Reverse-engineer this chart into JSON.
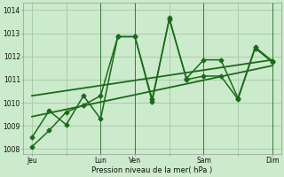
{
  "bg_color": "#cceacc",
  "grid_color": "#aaccaa",
  "line_color": "#1a6b1a",
  "ylabel": "Pression niveau de la mer( hPa )",
  "ylim": [
    1007.8,
    1014.3
  ],
  "yticks": [
    1008,
    1009,
    1010,
    1011,
    1012,
    1013,
    1014
  ],
  "xtick_labels": [
    "Jeu",
    "",
    "Lun",
    "Ven",
    "",
    "Sam",
    "",
    "Dim"
  ],
  "xtick_positions": [
    0,
    2,
    4,
    6,
    8,
    10,
    12,
    14
  ],
  "vline_positions": [
    4,
    6,
    10,
    14
  ],
  "lines": [
    {
      "x": [
        0,
        1,
        2,
        3,
        4,
        5,
        6,
        7,
        8,
        9,
        10,
        11,
        12,
        13,
        14
      ],
      "y": [
        1008.1,
        1008.8,
        1009.6,
        1009.9,
        1010.3,
        1012.85,
        1012.85,
        1010.15,
        1013.6,
        1011.05,
        1011.85,
        1011.85,
        1010.2,
        1012.4,
        1011.8
      ],
      "style": "-",
      "marker": "D",
      "markersize": 2.5,
      "linewidth": 1.1
    },
    {
      "x": [
        0,
        1,
        2,
        3,
        4,
        5,
        6,
        7,
        8,
        9,
        10,
        11,
        12,
        13,
        14
      ],
      "y": [
        1008.5,
        1009.65,
        1009.05,
        1010.3,
        1009.3,
        1012.85,
        1012.85,
        1010.05,
        1013.65,
        1011.0,
        1011.15,
        1011.15,
        1010.15,
        1012.35,
        1011.75
      ],
      "style": "-",
      "marker": "D",
      "markersize": 2.5,
      "linewidth": 1.1
    },
    {
      "x": [
        0,
        14
      ],
      "y": [
        1009.4,
        1011.6
      ],
      "style": "-",
      "marker": "None",
      "markersize": 0,
      "linewidth": 1.3
    },
    {
      "x": [
        0,
        14
      ],
      "y": [
        1010.3,
        1011.85
      ],
      "style": "-",
      "marker": "None",
      "markersize": 0,
      "linewidth": 1.3
    }
  ]
}
